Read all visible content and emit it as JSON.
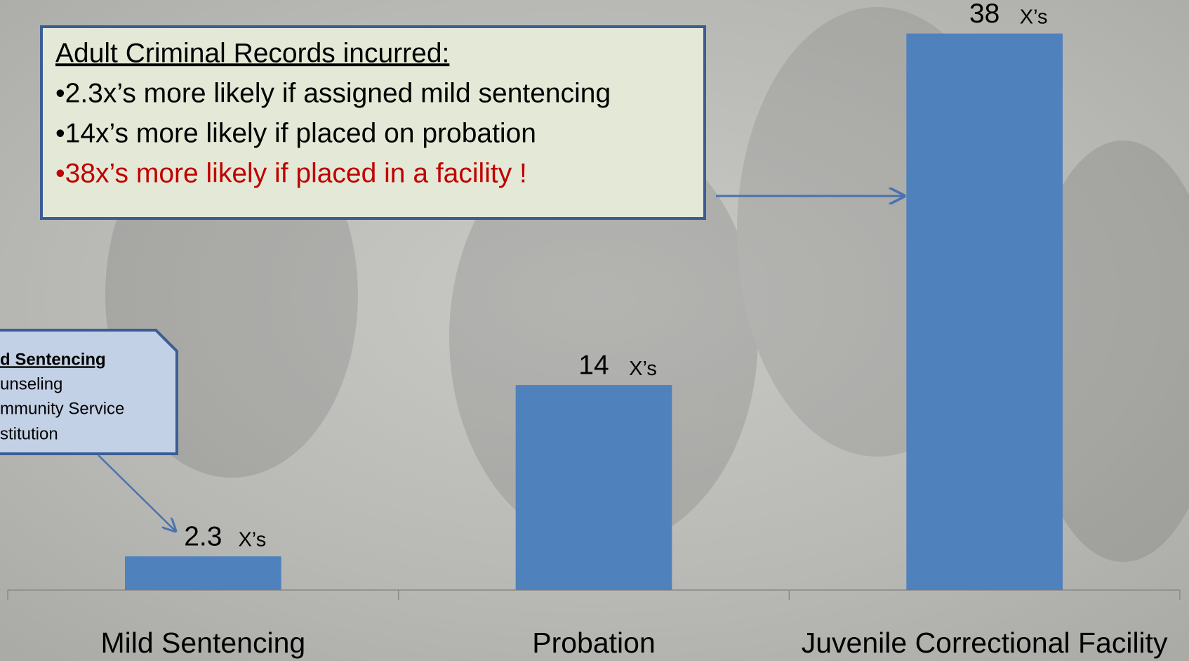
{
  "chart_data": {
    "type": "bar",
    "categories": [
      "Mild Sentencing",
      "Probation",
      "Juvenile Correctional Facility"
    ],
    "values": [
      2.3,
      14,
      38
    ],
    "value_unit": "X’s",
    "color": "#4f81bd",
    "ylim": [
      0,
      40
    ],
    "annotation_box": {
      "title": "Adult Criminal Records incurred:",
      "lines": [
        "•2.3x’s more likely if assigned mild sentencing",
        "•14x’s  more likely if placed on probation",
        "•38x’s  more likely if placed in a facility !"
      ]
    },
    "callout": {
      "title": "d Sentencing",
      "lines": [
        "unseling",
        "mmunity Service",
        "stitution"
      ]
    }
  }
}
